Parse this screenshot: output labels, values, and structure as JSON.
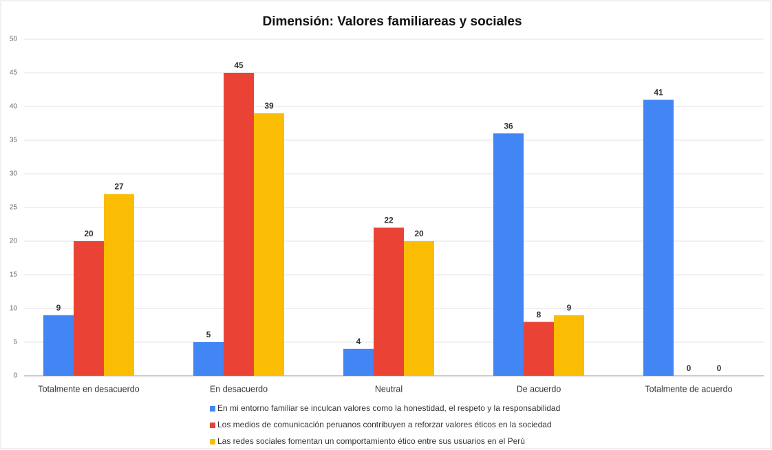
{
  "chart_data": {
    "type": "bar",
    "title": "Dimensión: Valores familiareas y sociales",
    "categories": [
      "Totalmente en desacuerdo",
      "En desacuerdo",
      "Neutral",
      "De acuerdo",
      "Totalmente de acuerdo"
    ],
    "series": [
      {
        "name": "En mi entorno familiar se inculcan valores como la honestidad, el respeto y la responsabilidad",
        "color": "#4285f4",
        "values": [
          9,
          5,
          4,
          36,
          41
        ]
      },
      {
        "name": "Los medios de comunicación peruanos contribuyen a reforzar valores éticos en la sociedad",
        "color": "#ea4335",
        "values": [
          20,
          45,
          22,
          8,
          0
        ]
      },
      {
        "name": "Las redes sociales fomentan un comportamiento ético entre sus usuarios en el Perú",
        "color": "#fbbc04",
        "values": [
          27,
          39,
          20,
          9,
          0
        ]
      }
    ],
    "ylim": [
      0,
      50
    ],
    "yticks": [
      0,
      5,
      10,
      15,
      20,
      25,
      30,
      35,
      40,
      45,
      50
    ],
    "grid": true
  }
}
